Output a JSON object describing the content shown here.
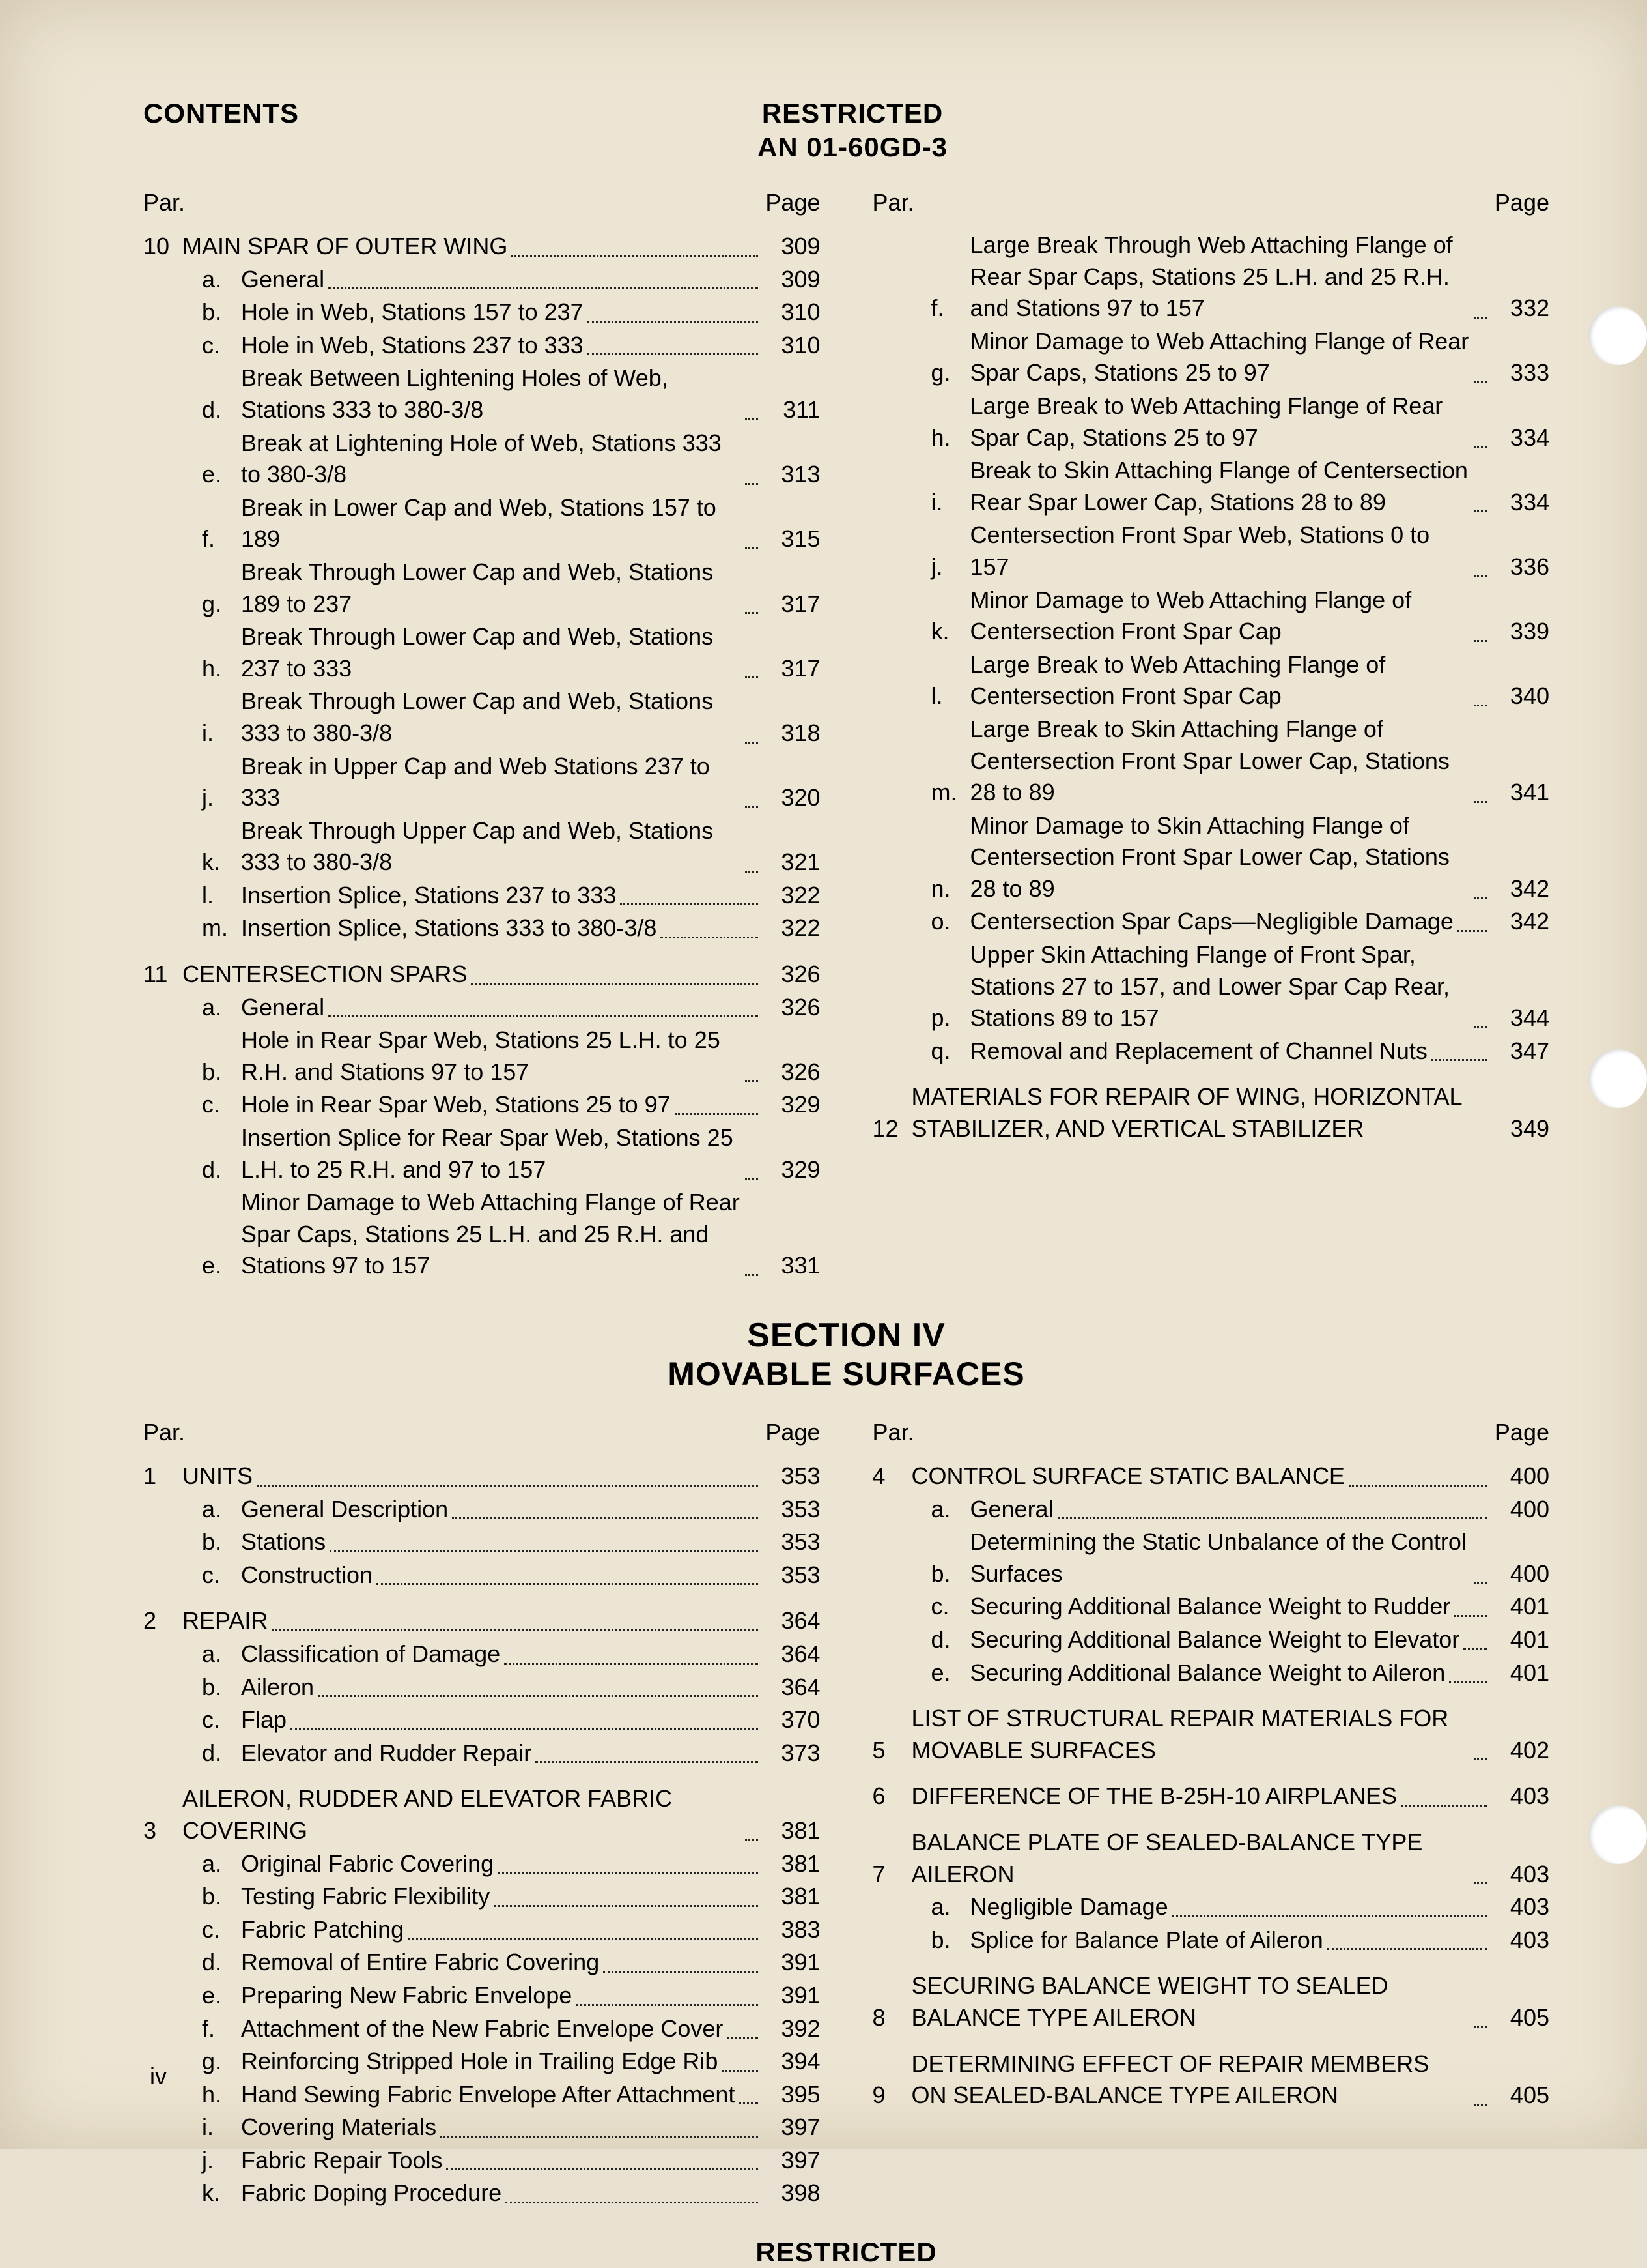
{
  "header": {
    "contents": "CONTENTS",
    "restricted": "RESTRICTED",
    "docref": "AN 01-60GD-3",
    "par": "Par.",
    "page": "Page"
  },
  "section": {
    "title": "SECTION IV",
    "subtitle": "MOVABLE SURFACES"
  },
  "footer": {
    "restricted": "RESTRICTED",
    "page": "iv"
  },
  "punch_holes": [
    470,
    1610,
    2770
  ],
  "topLeft": [
    {
      "type": "main",
      "num": "10",
      "label": "MAIN SPAR OF OUTER WING",
      "page": "309"
    },
    {
      "type": "sub",
      "letter": "a.",
      "label": "General",
      "page": "309"
    },
    {
      "type": "sub",
      "letter": "b.",
      "label": "Hole in Web, Stations 157 to 237",
      "page": "310"
    },
    {
      "type": "sub",
      "letter": "c.",
      "label": "Hole in Web, Stations 237 to 333",
      "page": "310"
    },
    {
      "type": "sub",
      "letter": "d.",
      "label": "Break Between Lightening Holes of Web, Stations 333 to 380-3/8",
      "page": "311"
    },
    {
      "type": "sub",
      "letter": "e.",
      "label": "Break at Lightening Hole of Web, Stations 333 to 380-3/8",
      "page": "313"
    },
    {
      "type": "sub",
      "letter": "f.",
      "label": "Break in Lower Cap and Web, Stations 157 to 189",
      "page": "315"
    },
    {
      "type": "sub",
      "letter": "g.",
      "label": "Break Through Lower Cap and Web, Stations 189 to 237",
      "page": "317"
    },
    {
      "type": "sub",
      "letter": "h.",
      "label": "Break Through Lower Cap and Web, Stations 237 to 333",
      "page": "317"
    },
    {
      "type": "sub",
      "letter": "i.",
      "label": "Break Through Lower Cap and Web, Stations 333 to 380-3/8",
      "page": "318"
    },
    {
      "type": "sub",
      "letter": "j.",
      "label": "Break in Upper Cap and Web Stations 237 to 333",
      "page": "320"
    },
    {
      "type": "sub",
      "letter": "k.",
      "label": "Break Through Upper Cap and Web, Stations 333 to 380-3/8",
      "page": "321"
    },
    {
      "type": "sub",
      "letter": "l.",
      "label": "Insertion Splice, Stations 237 to 333",
      "page": "322"
    },
    {
      "type": "sub",
      "letter": "m.",
      "label": "Insertion Splice, Stations 333 to 380-3/8",
      "page": "322"
    },
    {
      "type": "main",
      "num": "11",
      "label": "CENTERSECTION SPARS",
      "page": "326"
    },
    {
      "type": "sub",
      "letter": "a.",
      "label": "General",
      "page": "326"
    },
    {
      "type": "sub",
      "letter": "b.",
      "label": "Hole in Rear Spar Web, Stations 25 L.H. to 25 R.H. and Stations 97 to 157",
      "page": "326"
    },
    {
      "type": "sub",
      "letter": "c.",
      "label": "Hole in Rear Spar Web, Stations 25 to 97",
      "page": "329"
    },
    {
      "type": "sub",
      "letter": "d.",
      "label": "Insertion Splice for Rear Spar Web, Stations 25 L.H. to 25 R.H. and 97 to 157",
      "page": "329"
    },
    {
      "type": "sub",
      "letter": "e.",
      "label": "Minor Damage to Web Attaching Flange of Rear Spar Caps, Stations 25 L.H. and 25 R.H. and Stations 97 to 157",
      "page": "331"
    }
  ],
  "topRight": [
    {
      "type": "sub",
      "letter": "f.",
      "label": "Large Break Through Web Attaching Flange of Rear Spar Caps, Stations 25 L.H. and 25 R.H. and Stations 97 to 157",
      "page": "332"
    },
    {
      "type": "sub",
      "letter": "g.",
      "label": "Minor Damage to Web Attaching Flange of Rear Spar Caps, Stations 25 to 97",
      "page": "333"
    },
    {
      "type": "sub",
      "letter": "h.",
      "label": "Large Break to Web Attaching Flange of Rear Spar Cap, Stations 25 to 97",
      "page": "334"
    },
    {
      "type": "sub",
      "letter": "i.",
      "label": "Break to Skin Attaching Flange of Centersection Rear Spar Lower Cap, Stations 28 to 89",
      "page": "334"
    },
    {
      "type": "sub",
      "letter": "j.",
      "label": "Centersection Front Spar Web, Stations 0 to 157",
      "page": "336"
    },
    {
      "type": "sub",
      "letter": "k.",
      "label": "Minor Damage to Web Attaching Flange of Centersection Front Spar Cap",
      "page": "339"
    },
    {
      "type": "sub",
      "letter": "l.",
      "label": "Large Break to Web Attaching Flange of Centersection Front Spar Cap",
      "page": "340"
    },
    {
      "type": "sub",
      "letter": "m.",
      "label": "Large Break to Skin Attaching Flange of Centersection Front Spar Lower Cap, Stations 28 to 89",
      "page": "341"
    },
    {
      "type": "sub",
      "letter": "n.",
      "label": "Minor Damage to Skin Attaching Flange of Centersection Front Spar Lower Cap, Stations 28 to 89",
      "page": "342"
    },
    {
      "type": "sub",
      "letter": "o.",
      "label": "Centersection Spar Caps—Negligible Damage",
      "page": "342"
    },
    {
      "type": "sub",
      "letter": "p.",
      "label": "Upper Skin Attaching Flange of Front Spar, Stations 27 to 157, and Lower Spar Cap Rear, Stations 89 to 157",
      "page": "344"
    },
    {
      "type": "sub",
      "letter": "q.",
      "label": "Removal and Replacement of Channel Nuts",
      "page": "347"
    },
    {
      "type": "main",
      "num": "12",
      "label": "MATERIALS FOR REPAIR OF WING, HORIZONTAL STABILIZER, AND VERTICAL STABILIZER",
      "page": "349",
      "indent": true,
      "nodots": true
    }
  ],
  "botLeft": [
    {
      "type": "main",
      "num": "1",
      "label": "UNITS",
      "page": "353"
    },
    {
      "type": "sub",
      "letter": "a.",
      "label": "General Description",
      "page": "353"
    },
    {
      "type": "sub",
      "letter": "b.",
      "label": "Stations",
      "page": "353"
    },
    {
      "type": "sub",
      "letter": "c.",
      "label": "Construction",
      "page": "353"
    },
    {
      "type": "main",
      "num": "2",
      "label": "REPAIR",
      "page": "364"
    },
    {
      "type": "sub",
      "letter": "a.",
      "label": "Classification of Damage",
      "page": "364"
    },
    {
      "type": "sub",
      "letter": "b.",
      "label": "Aileron",
      "page": "364"
    },
    {
      "type": "sub",
      "letter": "c.",
      "label": "Flap",
      "page": "370"
    },
    {
      "type": "sub",
      "letter": "d.",
      "label": "Elevator and Rudder Repair",
      "page": "373"
    },
    {
      "type": "main",
      "num": "3",
      "label": "AILERON, RUDDER AND ELEVATOR FABRIC COVERING",
      "page": "381",
      "indent": true
    },
    {
      "type": "sub",
      "letter": "a.",
      "label": "Original Fabric Covering",
      "page": "381"
    },
    {
      "type": "sub",
      "letter": "b.",
      "label": "Testing Fabric Flexibility",
      "page": "381"
    },
    {
      "type": "sub",
      "letter": "c.",
      "label": "Fabric Patching",
      "page": "383"
    },
    {
      "type": "sub",
      "letter": "d.",
      "label": "Removal of Entire Fabric Covering",
      "page": "391"
    },
    {
      "type": "sub",
      "letter": "e.",
      "label": "Preparing New Fabric Envelope",
      "page": "391"
    },
    {
      "type": "sub",
      "letter": "f.",
      "label": "Attachment of the New Fabric Envelope Cover",
      "page": "392"
    },
    {
      "type": "sub",
      "letter": "g.",
      "label": "Reinforcing Stripped Hole in Trailing Edge Rib",
      "page": "394"
    },
    {
      "type": "sub",
      "letter": "h.",
      "label": "Hand Sewing Fabric Envelope After Attachment",
      "page": "395"
    },
    {
      "type": "sub",
      "letter": "i.",
      "label": "Covering Materials",
      "page": "397"
    },
    {
      "type": "sub",
      "letter": "j.",
      "label": "Fabric Repair Tools",
      "page": "397"
    },
    {
      "type": "sub",
      "letter": "k.",
      "label": "Fabric Doping Procedure",
      "page": "398"
    }
  ],
  "botRight": [
    {
      "type": "main",
      "num": "4",
      "label": "CONTROL SURFACE STATIC BALANCE",
      "page": "400"
    },
    {
      "type": "sub",
      "letter": "a.",
      "label": "General",
      "page": "400"
    },
    {
      "type": "sub",
      "letter": "b.",
      "label": "Determining the Static Unbalance of the Control Surfaces",
      "page": "400"
    },
    {
      "type": "sub",
      "letter": "c.",
      "label": "Securing Additional Balance Weight to Rudder",
      "page": "401"
    },
    {
      "type": "sub",
      "letter": "d.",
      "label": "Securing Additional Balance Weight to Elevator",
      "page": "401"
    },
    {
      "type": "sub",
      "letter": "e.",
      "label": "Securing Additional Balance Weight to Aileron",
      "page": "401"
    },
    {
      "type": "main",
      "num": "5",
      "label": "LIST OF STRUCTURAL REPAIR MATERIALS FOR MOVABLE SURFACES",
      "page": "402",
      "indent": true
    },
    {
      "type": "main",
      "num": "6",
      "label": "DIFFERENCE OF THE B-25H-10 AIRPLANES",
      "page": "403"
    },
    {
      "type": "main",
      "num": "7",
      "label": "BALANCE PLATE OF SEALED-BALANCE TYPE AILERON",
      "page": "403",
      "indent": true
    },
    {
      "type": "sub",
      "letter": "a.",
      "label": "Negligible Damage",
      "page": "403"
    },
    {
      "type": "sub",
      "letter": "b.",
      "label": "Splice for Balance Plate of Aileron",
      "page": "403"
    },
    {
      "type": "main",
      "num": "8",
      "label": "SECURING BALANCE WEIGHT TO SEALED BALANCE TYPE AILERON",
      "page": "405",
      "indent": true
    },
    {
      "type": "main",
      "num": "9",
      "label": "DETERMINING EFFECT OF REPAIR MEMBERS ON SEALED-BALANCE TYPE AILERON",
      "page": "405",
      "indent": true
    }
  ]
}
